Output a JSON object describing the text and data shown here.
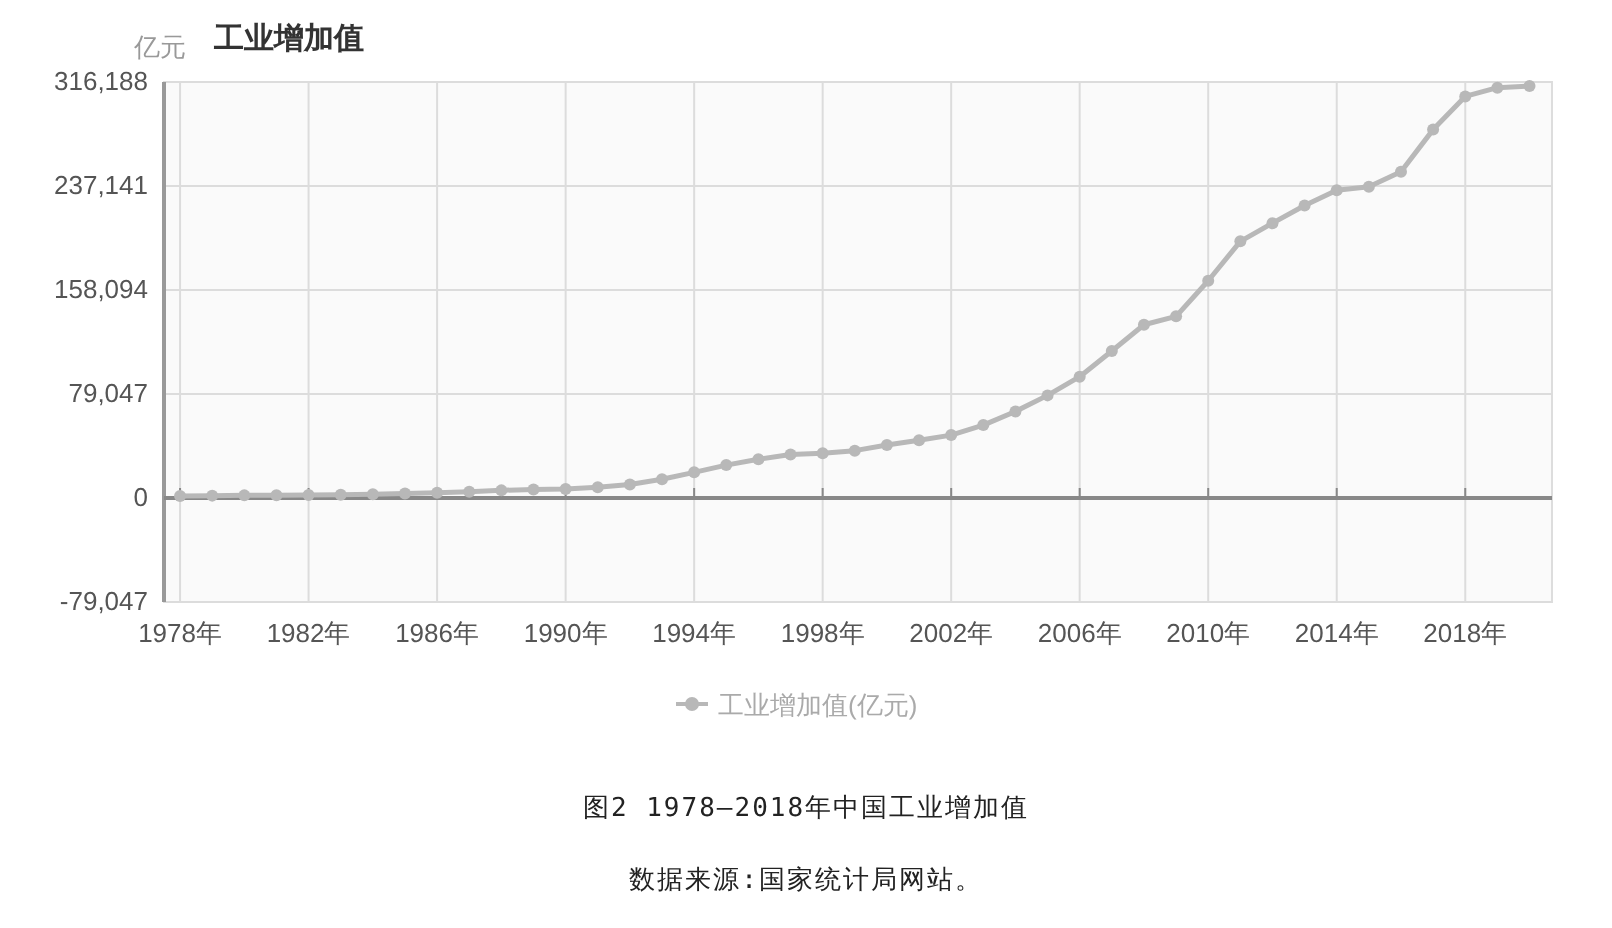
{
  "chart_data": {
    "type": "line",
    "title": "工业增加值",
    "ylabel": "亿元",
    "annotations": [
      "图2 1978—2018年中国工业增加值",
      "数据来源:国家统计局网站。"
    ],
    "x": [
      1978,
      1979,
      1980,
      1981,
      1982,
      1983,
      1984,
      1985,
      1986,
      1987,
      1988,
      1989,
      1990,
      1991,
      1992,
      1993,
      1994,
      1995,
      1996,
      1997,
      1998,
      1999,
      2000,
      2001,
      2002,
      2003,
      2004,
      2005,
      2006,
      2007,
      2008,
      2009,
      2010,
      2011,
      2012,
      2013,
      2014,
      2015,
      2016,
      2017,
      2018,
      2019,
      2020
    ],
    "series": [
      {
        "name": "工业增加值(亿元)",
        "color": "#b8b8b8",
        "values": [
          1600,
          1800,
          2000,
          2100,
          2200,
          2400,
          2800,
          3500,
          4000,
          4700,
          5800,
          6500,
          6900,
          8100,
          10300,
          14200,
          19500,
          25000,
          29500,
          33000,
          34100,
          36000,
          40300,
          43900,
          47800,
          55400,
          65800,
          78000,
          92200,
          111700,
          131700,
          138100,
          165100,
          195100,
          208900,
          222300,
          233900,
          236500,
          247900,
          280000,
          305200,
          311900,
          313100
        ]
      }
    ],
    "xlim": [
      1977.5,
      2020.7
    ],
    "xticks": [
      {
        "value": 1978,
        "label": "1978年"
      },
      {
        "value": 1982,
        "label": "1982年"
      },
      {
        "value": 1986,
        "label": "1986年"
      },
      {
        "value": 1990,
        "label": "1990年"
      },
      {
        "value": 1994,
        "label": "1994年"
      },
      {
        "value": 1998,
        "label": "1998年"
      },
      {
        "value": 2002,
        "label": "2002年"
      },
      {
        "value": 2006,
        "label": "2006年"
      },
      {
        "value": 2010,
        "label": "2010年"
      },
      {
        "value": 2014,
        "label": "2014年"
      },
      {
        "value": 2018,
        "label": "2018年"
      }
    ],
    "ylim": [
      -79047,
      316188
    ],
    "yticks": [
      {
        "value": -79047,
        "label": "-79,047"
      },
      0,
      {
        "value": 79047,
        "label": "79,047"
      },
      {
        "value": 158094,
        "label": "158,094"
      },
      {
        "value": 237141,
        "label": "237,141"
      },
      {
        "value": 316188,
        "label": "316,188"
      }
    ],
    "grid": true,
    "legend": "bottom",
    "marker": "circle"
  }
}
